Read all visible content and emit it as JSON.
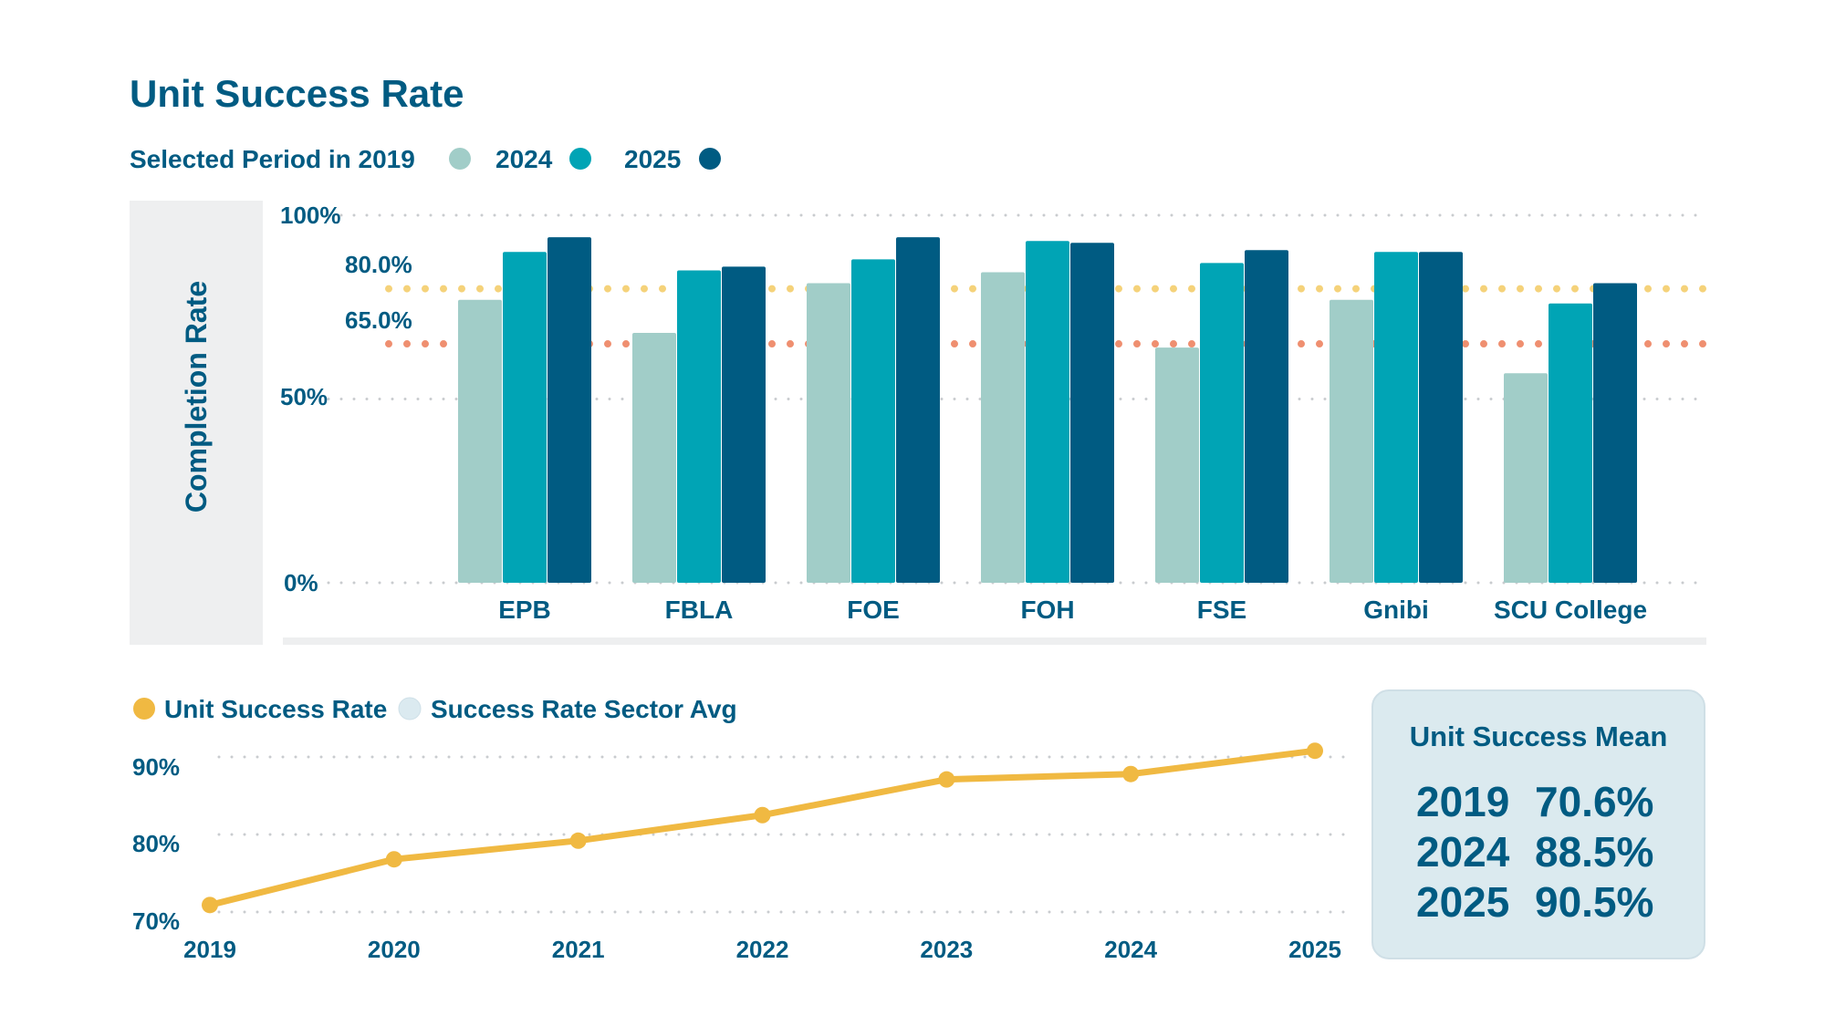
{
  "colors": {
    "2019": "#a1cdc8",
    "2024": "#00a4b5",
    "2025": "#005b82",
    "text": "#005b82",
    "target_80": "#f5d27a",
    "target_65": "#ef8f70",
    "line": "#f0b942",
    "sector_avg": "#dbeaf0",
    "panel": "#eeeff0",
    "box": "#dbeaef"
  },
  "title": "Unit Success Rate",
  "legend": {
    "prefix": "Selected Period in 2019",
    "items": [
      "2019",
      "2024",
      "2025"
    ],
    "label_2024": "2024",
    "label_2025": "2025"
  },
  "chart_data": [
    {
      "type": "bar",
      "title": "Unit Success Rate",
      "ylabel": "Completion Rate",
      "xlabel": "",
      "ylim": [
        0,
        100
      ],
      "yticks": [
        "0%",
        "50%",
        "100%"
      ],
      "ytick_values": [
        0,
        50,
        100
      ],
      "grid": true,
      "legend_placement": "top-left",
      "categories": [
        "EPB",
        "FBLA",
        "FOE",
        "FOH",
        "FSE",
        "Gnibi",
        "SCU College"
      ],
      "series": [
        {
          "name": "2019",
          "values": [
            77,
            68,
            81.5,
            84.5,
            64,
            77,
            57
          ]
        },
        {
          "name": "2024",
          "values": [
            90,
            85,
            88,
            93,
            87,
            90,
            76
          ]
        },
        {
          "name": "2025",
          "values": [
            94,
            86,
            94,
            92.5,
            90.5,
            90,
            81.5
          ]
        }
      ],
      "reference_lines": [
        {
          "label": "80.0%",
          "value": 80
        },
        {
          "label": "65.0%",
          "value": 65
        }
      ]
    },
    {
      "type": "line",
      "title": "",
      "xlabel": "",
      "ylabel": "",
      "ylim": [
        70,
        90
      ],
      "yticks": [
        "70%",
        "80%",
        "90%"
      ],
      "ytick_values": [
        70,
        80,
        90
      ],
      "grid": true,
      "legend_placement": "top-left",
      "legend": [
        "Unit Success Rate",
        "Success Rate Sector Avg"
      ],
      "x": [
        "2019",
        "2020",
        "2021",
        "2022",
        "2023",
        "2024",
        "2025"
      ],
      "series": [
        {
          "name": "Unit Success Rate",
          "values": [
            70.9,
            76.8,
            79.2,
            82.5,
            87.1,
            87.8,
            90.8
          ]
        }
      ]
    }
  ],
  "mean_box": {
    "title": "Unit Success Mean",
    "rows": [
      {
        "year": "2019",
        "value": "70.6%"
      },
      {
        "year": "2024",
        "value": "88.5%"
      },
      {
        "year": "2025",
        "value": "90.5%"
      }
    ]
  }
}
